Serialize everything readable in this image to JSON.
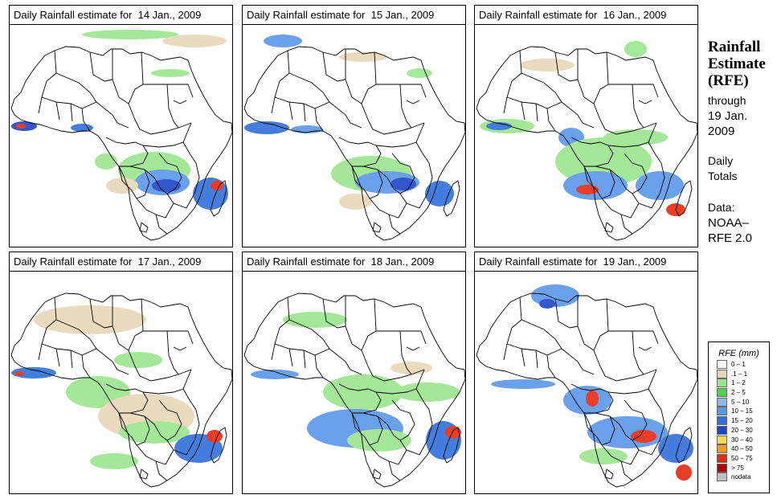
{
  "panels": [
    {
      "title": "Daily Rainfall estimate for  14 Jan., 2009"
    },
    {
      "title": "Daily Rainfall estimate for  15 Jan., 2009"
    },
    {
      "title": "Daily Rainfall estimate for  16 Jan., 2009"
    },
    {
      "title": "Daily Rainfall estimate for  17 Jan., 2009"
    },
    {
      "title": "Daily Rainfall estimate for  18 Jan., 2009"
    },
    {
      "title": "Daily Rainfall estimate for  19 Jan., 2009"
    }
  ],
  "sidebar": {
    "title_line1": "Rainfall",
    "title_line2": "Estimate",
    "title_line3": "(RFE)",
    "through_label": "through",
    "through_date_line1": "19 Jan.",
    "through_date_line2": "2009",
    "totals_line1": "Daily",
    "totals_line2": "Totals",
    "data_label": "Data:",
    "data_source_line1": "NOAA–",
    "data_source_line2": "RFE 2.0"
  },
  "legend": {
    "title": "RFE (mm)",
    "items": [
      {
        "label": "0 – 1",
        "color": "#f5f5f5"
      },
      {
        "label": ".1 – 1",
        "color": "#e8d6b8"
      },
      {
        "label": "1 – 2",
        "color": "#9be58f"
      },
      {
        "label": "2 – 5",
        "color": "#4fd24f"
      },
      {
        "label": "5 – 10",
        "color": "#8fb5ee"
      },
      {
        "label": "10 – 15",
        "color": "#5a96ea"
      },
      {
        "label": "15 – 20",
        "color": "#3170dc"
      },
      {
        "label": "20 – 30",
        "color": "#1f45c8"
      },
      {
        "label": "30 – 40",
        "color": "#f7d85a"
      },
      {
        "label": "40 – 50",
        "color": "#f29a1c"
      },
      {
        "label": "50 – 75",
        "color": "#e62a10"
      },
      {
        "label": "> 75",
        "color": "#b30000"
      },
      {
        "label": "nodata",
        "color": "#c0c0c0"
      }
    ]
  }
}
